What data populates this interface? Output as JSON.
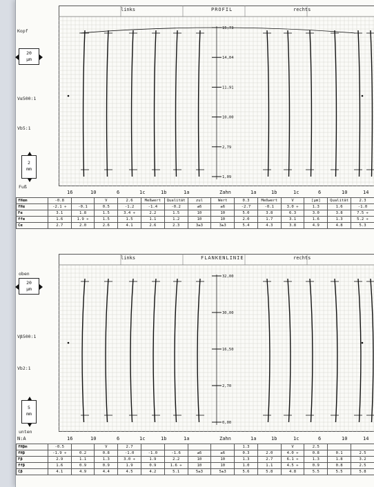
{
  "profile": {
    "side_left": "links",
    "title": "PROFIL",
    "side_right": "rechts",
    "top_label": "Kopf",
    "bottom_label": "Fuß",
    "scale_box": {
      "value": "20",
      "unit": "µm"
    },
    "ratio_v": "Vα500:1",
    "ratio_b": "Vb5:1",
    "height_box": {
      "value": "2",
      "unit": "mm"
    },
    "marker_labels": [
      "15,73",
      "14,04",
      "11,91",
      "10,00",
      "2,79",
      "1,09"
    ],
    "tooth_numbers": [
      "16",
      "10",
      "6",
      "1c",
      "1b",
      "1a",
      "Zahn",
      "1a",
      "1b",
      "1c",
      "6",
      "10",
      "14"
    ],
    "table": {
      "header": [
        "fHαm",
        "-0.8",
        "",
        "V",
        "2.6",
        "",
        "",
        "",
        "",
        "0.3",
        "",
        "V",
        "2.3"
      ],
      "mid_headers": [
        "Meßwert",
        "[µm]",
        "Qualität",
        "zul",
        "Wert",
        "Que",
        "Meßwert",
        "[µm]",
        "Qualität"
      ],
      "rows": [
        {
          "label": "fHα",
          "values": [
            "-2.1 ÷",
            "-0.1",
            "0.5",
            "-1.2",
            "-1.4",
            "-0.2",
            "±6",
            "±6",
            "-2.7",
            "-0.1",
            "3.0 ÷",
            "1.3",
            "1.6",
            "-1.0"
          ]
        },
        {
          "label": "Fα",
          "values": [
            "3.1",
            "1.8",
            "1.5",
            "3.4 ÷",
            "2.2",
            "1.5",
            "10",
            "10",
            "5.0",
            "3.8",
            "6.3",
            "3.0",
            "3.8",
            "7.5 ÷"
          ]
        },
        {
          "label": "ffα",
          "values": [
            "1.6",
            "1.9 ÷",
            "1.5",
            "1.5",
            "1.1",
            "1.2",
            "10",
            "10",
            "2.0",
            "1.7",
            "3.1",
            "1.6",
            "1.3",
            "5.2 ÷"
          ]
        },
        {
          "label": "Cα",
          "values": [
            "2.7",
            "2.0",
            "2.6",
            "4.1",
            "2.6",
            "2.3",
            "3±3",
            "3±3",
            "5.4",
            "4.3",
            "3.8",
            "4.9",
            "4.8",
            "5.3"
          ]
        }
      ]
    }
  },
  "flank": {
    "side_left": "links",
    "title": "FLANKENLINIE",
    "side_right": "rechts",
    "top_label": "oben",
    "bottom_label": "unten",
    "scale_box": {
      "value": "20",
      "unit": "µm"
    },
    "ratio_v": "Vβ500:1",
    "ratio_b": "Vb2:1",
    "height_box": {
      "value": "5",
      "unit": "mm"
    },
    "marker_labels": [
      "32,00",
      "30,00",
      "16,50",
      "2,70",
      "0,00"
    ],
    "row_label": "N:A",
    "tooth_numbers": [
      "16",
      "10",
      "6",
      "1c",
      "1b",
      "1a",
      "Zahn",
      "1a",
      "1b",
      "1c",
      "6",
      "10",
      "14"
    ],
    "table": {
      "header": [
        "fHβm",
        "-0.5",
        "",
        "V",
        "2.7",
        "",
        "",
        "",
        "",
        "1.3",
        "",
        "V",
        "2.5"
      ],
      "rows": [
        {
          "label": "fHβ",
          "values": [
            "-1.9 ÷",
            "0.2",
            "0.8",
            "-1.0",
            "-1.0",
            "-1.6",
            "±6",
            "±6",
            "0.3",
            "2.0",
            "4.0 ÷",
            "0.8",
            "0.1",
            "2.5"
          ]
        },
        {
          "label": "Fβ",
          "values": [
            "2.9",
            "1.1",
            "1.3",
            "3.0 ÷",
            "1.9",
            "2.2",
            "10",
            "10",
            "1.3",
            "2.7",
            "6.1 ÷",
            "1.3",
            "1.8",
            "3.2"
          ]
        },
        {
          "label": "ffβ",
          "values": [
            "1.6",
            "0.9",
            "0.9",
            "1.9",
            "0.9",
            "1.6 ÷",
            "10",
            "10",
            "1.0",
            "1.1",
            "4.5 ÷",
            "0.9",
            "0.8",
            "2.5"
          ]
        },
        {
          "label": "Cβ",
          "values": [
            "4.1",
            "4.9",
            "4.4",
            "4.5",
            "4.2",
            "5.1",
            "5±3",
            "5±3",
            "5.6",
            "5.8",
            "4.8",
            "5.5",
            "5.5",
            "5.8"
          ]
        }
      ]
    }
  }
}
